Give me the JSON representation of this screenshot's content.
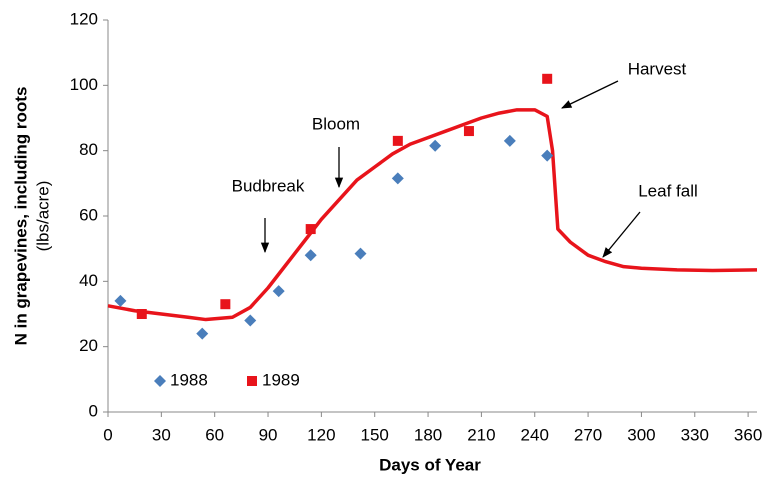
{
  "chart_data": {
    "type": "scatter",
    "xlabel": "Days of Year",
    "ylabel": "N in grapevines, including roots",
    "ylabel_unit": "(lbs/acre)",
    "xlim": [
      0,
      365
    ],
    "ylim": [
      0,
      120
    ],
    "xticks": [
      0,
      30,
      60,
      90,
      120,
      150,
      180,
      210,
      240,
      270,
      300,
      330,
      360
    ],
    "yticks": [
      0,
      20,
      40,
      60,
      80,
      100,
      120
    ],
    "grid": false,
    "legend": "lower left",
    "annotations": [
      "Budbreak",
      "Bloom",
      "Harvest",
      "Leaf fall"
    ],
    "series": [
      {
        "marker": "line",
        "color": "#e8141b",
        "x": [
          0,
          15,
          30,
          45,
          55,
          70,
          80,
          90,
          100,
          110,
          120,
          130,
          140,
          150,
          160,
          170,
          180,
          190,
          200,
          210,
          220,
          230,
          240,
          247,
          250,
          253,
          260,
          270,
          280,
          290,
          300,
          320,
          340,
          365
        ],
        "values": [
          32.5,
          31,
          30,
          29,
          28.3,
          29,
          32,
          38,
          45,
          52,
          59,
          65,
          71,
          75,
          79,
          82,
          84,
          86,
          88,
          90,
          91.5,
          92.5,
          92.5,
          90.5,
          80,
          56,
          52,
          48,
          46,
          44.5,
          44,
          43.5,
          43.3,
          43.5
        ]
      },
      {
        "name": "1988",
        "marker": "diamond",
        "color": "#4a7ebb",
        "x": [
          7,
          53,
          80,
          96,
          114,
          142,
          163,
          184,
          226,
          247
        ],
        "values": [
          34,
          24,
          28,
          37,
          48,
          48.5,
          71.5,
          81.5,
          83,
          78.5
        ]
      },
      {
        "name": "1989",
        "marker": "square",
        "color": "#e8141b",
        "x": [
          19,
          66,
          114,
          163,
          203,
          247
        ],
        "values": [
          30,
          33,
          56,
          83,
          86,
          102
        ]
      }
    ]
  }
}
